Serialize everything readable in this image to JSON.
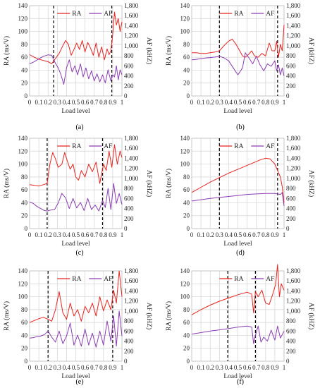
{
  "colors": {
    "ra": "#e8231e",
    "af": "#8b3db3",
    "grid": "#d3d3d3",
    "vline": "#000000"
  },
  "chart_data": [
    {
      "type": "line",
      "caption": "(a)",
      "xlabel": "Load level",
      "ylabel": "RA (ms/V)",
      "y2label": "AF (kHZ)",
      "xlim": [
        0,
        1
      ],
      "ylim": [
        0,
        140
      ],
      "y2lim": [
        0,
        1800
      ],
      "xticks": [
        "0",
        "0.1",
        "0.2",
        "0.3",
        "0.4",
        "0.5",
        "0.6",
        "0.7",
        "0.8",
        "0.9",
        "1"
      ],
      "yticks": [
        "0",
        "20",
        "40",
        "60",
        "80",
        "100",
        "120",
        "140"
      ],
      "y2ticks": [
        "0",
        "200",
        "400",
        "600",
        "800",
        "1,000",
        "1,200",
        "1,400",
        "1,600",
        "1,800"
      ],
      "vlines": [
        0.26,
        0.89
      ],
      "legend": [
        "RA",
        "AF"
      ],
      "series": [
        {
          "name": "RA",
          "axis": "left",
          "x": [
            0,
            0.05,
            0.1,
            0.15,
            0.2,
            0.24,
            0.28,
            0.32,
            0.36,
            0.39,
            0.42,
            0.45,
            0.48,
            0.51,
            0.54,
            0.57,
            0.6,
            0.63,
            0.66,
            0.69,
            0.72,
            0.75,
            0.78,
            0.81,
            0.84,
            0.86,
            0.88,
            0.9,
            0.92,
            0.94,
            0.96,
            0.98,
            1.0
          ],
          "y": [
            64,
            60,
            57,
            55,
            53,
            50,
            58,
            66,
            78,
            86,
            80,
            63,
            72,
            82,
            72,
            86,
            68,
            83,
            74,
            63,
            82,
            60,
            76,
            56,
            73,
            64,
            70,
            95,
            130,
            110,
            120,
            100,
            115
          ]
        },
        {
          "name": "AF",
          "axis": "right",
          "x": [
            0,
            0.05,
            0.1,
            0.15,
            0.2,
            0.24,
            0.28,
            0.31,
            0.34,
            0.37,
            0.4,
            0.43,
            0.46,
            0.49,
            0.52,
            0.55,
            0.58,
            0.61,
            0.64,
            0.67,
            0.7,
            0.73,
            0.76,
            0.79,
            0.82,
            0.85,
            0.88,
            0.9,
            0.92,
            0.94,
            0.96,
            0.98,
            1.0
          ],
          "y": [
            640,
            680,
            740,
            790,
            820,
            810,
            650,
            560,
            420,
            230,
            560,
            720,
            480,
            600,
            420,
            640,
            380,
            560,
            340,
            500,
            300,
            440,
            280,
            420,
            260,
            520,
            300,
            420,
            380,
            600,
            320,
            520,
            420
          ]
        }
      ]
    },
    {
      "type": "line",
      "caption": "(b)",
      "xlabel": "Load level",
      "ylabel": "RA (ms/V)",
      "y2label": "AF (kHZ)",
      "xlim": [
        0,
        1
      ],
      "ylim": [
        0,
        140
      ],
      "y2lim": [
        0,
        1800
      ],
      "xticks": [
        "0",
        "0.1",
        "0.2",
        "0.3",
        "0.4",
        "0.5",
        "0.6",
        "0.7",
        "0.8",
        "0.9",
        "1"
      ],
      "yticks": [
        "0",
        "20",
        "40",
        "60",
        "80",
        "100",
        "120",
        "140"
      ],
      "y2ticks": [
        "0",
        "200",
        "400",
        "600",
        "800",
        "1,000",
        "1,200",
        "1,400",
        "1,600",
        "1,800"
      ],
      "vlines": [
        0.3,
        0.93
      ],
      "legend": [
        "RA",
        "AF"
      ],
      "series": [
        {
          "name": "RA",
          "axis": "left",
          "x": [
            0,
            0.05,
            0.1,
            0.15,
            0.2,
            0.25,
            0.3,
            0.35,
            0.4,
            0.44,
            0.48,
            0.52,
            0.55,
            0.58,
            0.62,
            0.65,
            0.68,
            0.72,
            0.76,
            0.8,
            0.84,
            0.87,
            0.9,
            0.92,
            0.94,
            0.96,
            0.98,
            1.0
          ],
          "y": [
            67,
            67,
            66,
            66,
            67,
            68,
            70,
            78,
            85,
            88,
            80,
            70,
            62,
            60,
            65,
            70,
            62,
            60,
            66,
            62,
            82,
            70,
            70,
            85,
            60,
            80,
            70,
            110
          ]
        },
        {
          "name": "AF",
          "axis": "right",
          "x": [
            0,
            0.05,
            0.1,
            0.15,
            0.2,
            0.25,
            0.3,
            0.35,
            0.4,
            0.45,
            0.5,
            0.55,
            0.58,
            0.62,
            0.66,
            0.7,
            0.74,
            0.78,
            0.82,
            0.86,
            0.9,
            0.92,
            0.94,
            0.96,
            0.98,
            1.0
          ],
          "y": [
            720,
            730,
            745,
            755,
            765,
            775,
            790,
            760,
            700,
            560,
            420,
            560,
            860,
            760,
            640,
            790,
            620,
            500,
            640,
            590,
            700,
            500,
            620,
            420,
            560,
            400
          ]
        }
      ]
    },
    {
      "type": "line",
      "caption": "(c)",
      "xlabel": "Load level",
      "ylabel": "RA (ms/V)",
      "y2label": "AF (kHZ)",
      "xlim": [
        0,
        1
      ],
      "ylim": [
        0,
        140
      ],
      "y2lim": [
        0,
        1800
      ],
      "xticks": [
        "0",
        "0.1",
        "0.2",
        "0.3",
        "0.4",
        "0.5",
        "0.6",
        "0.7",
        "0.8",
        "0.9",
        "1"
      ],
      "yticks": [
        "0",
        "20",
        "40",
        "60",
        "80",
        "100",
        "120",
        "140"
      ],
      "y2ticks": [
        "0",
        "200",
        "400",
        "600",
        "800",
        "1,000",
        "1,200",
        "1,400",
        "1,600",
        "1,800"
      ],
      "vlines": [
        0.19,
        0.79
      ],
      "legend": [
        "RA",
        "AF"
      ],
      "series": [
        {
          "name": "RA",
          "axis": "left",
          "x": [
            0,
            0.05,
            0.1,
            0.15,
            0.19,
            0.22,
            0.25,
            0.28,
            0.31,
            0.35,
            0.38,
            0.41,
            0.44,
            0.47,
            0.5,
            0.53,
            0.56,
            0.6,
            0.64,
            0.68,
            0.72,
            0.76,
            0.8,
            0.83,
            0.86,
            0.89,
            0.92,
            0.95,
            0.98,
            1.0
          ],
          "y": [
            68,
            67,
            66,
            68,
            70,
            100,
            118,
            108,
            95,
            100,
            118,
            104,
            92,
            100,
            80,
            75,
            90,
            80,
            100,
            88,
            103,
            70,
            100,
            90,
            120,
            95,
            130,
            100,
            120,
            110
          ]
        },
        {
          "name": "AF",
          "axis": "right",
          "x": [
            0,
            0.04,
            0.08,
            0.12,
            0.16,
            0.19,
            0.23,
            0.27,
            0.31,
            0.35,
            0.39,
            0.43,
            0.47,
            0.51,
            0.55,
            0.59,
            0.63,
            0.67,
            0.71,
            0.75,
            0.79,
            0.82,
            0.85,
            0.88,
            0.91,
            0.94,
            0.97,
            1.0
          ],
          "y": [
            530,
            500,
            440,
            400,
            360,
            350,
            370,
            380,
            510,
            700,
            610,
            400,
            600,
            410,
            520,
            360,
            600,
            380,
            470,
            350,
            560,
            420,
            800,
            380,
            900,
            500,
            700,
            480
          ]
        }
      ]
    },
    {
      "type": "line",
      "caption": "(d)",
      "xlabel": "Load level",
      "ylabel": "RA (ms/V)",
      "y2label": "AF (kHZ)",
      "xlim": [
        0,
        1
      ],
      "ylim": [
        0,
        140
      ],
      "y2lim": [
        0,
        1800
      ],
      "xticks": [
        "0",
        "0.1",
        "0.2",
        "0.3",
        "0.4",
        "0.5",
        "0.6",
        "0.7",
        "0.8",
        "0.9",
        "1"
      ],
      "yticks": [
        "0",
        "20",
        "40",
        "60",
        "80",
        "100",
        "120",
        "140"
      ],
      "y2ticks": [
        "0",
        "200",
        "400",
        "600",
        "800",
        "1,000",
        "1,200",
        "1,400",
        "1,600",
        "1,800"
      ],
      "vlines": [
        0.3,
        0.93
      ],
      "legend": [
        "RA",
        "AF"
      ],
      "series": [
        {
          "name": "RA",
          "axis": "left",
          "x": [
            0,
            0.1,
            0.2,
            0.3,
            0.4,
            0.5,
            0.6,
            0.7,
            0.75,
            0.8,
            0.85,
            0.9,
            0.93,
            0.96,
            0.98,
            1.0
          ],
          "y": [
            56,
            64,
            72,
            79,
            86,
            92,
            98,
            104,
            107,
            109,
            108,
            100,
            90,
            80,
            65,
            40
          ]
        },
        {
          "name": "AF",
          "axis": "right",
          "x": [
            0,
            0.1,
            0.2,
            0.3,
            0.4,
            0.5,
            0.6,
            0.7,
            0.8,
            0.9,
            0.93,
            0.96,
            0.98,
            1.0
          ],
          "y": [
            550,
            575,
            600,
            620,
            640,
            660,
            680,
            690,
            700,
            700,
            690,
            680,
            720,
            450
          ]
        }
      ]
    },
    {
      "type": "line",
      "caption": "(e)",
      "xlabel": "Load level",
      "ylabel": "RA (ms/V)",
      "y2label": "AF (kHZ)",
      "xlim": [
        0,
        1
      ],
      "ylim": [
        0,
        140
      ],
      "y2lim": [
        0,
        1800
      ],
      "xticks": [
        "0",
        "0.1",
        "0.2",
        "0.3",
        "0.4",
        "0.5",
        "0.6",
        "0.7",
        "0.8",
        "0.9",
        "1"
      ],
      "yticks": [
        "0",
        "20",
        "40",
        "60",
        "80",
        "100",
        "120",
        "140"
      ],
      "y2ticks": [
        "0",
        "200",
        "400",
        "600",
        "800",
        "1,000",
        "1,200",
        "1,400",
        "1,600",
        "1,800"
      ],
      "vlines": [
        0.2,
        0.9
      ],
      "legend": [
        "RA",
        "AF"
      ],
      "series": [
        {
          "name": "RA",
          "axis": "left",
          "x": [
            0,
            0.05,
            0.1,
            0.15,
            0.2,
            0.24,
            0.28,
            0.32,
            0.36,
            0.4,
            0.44,
            0.48,
            0.52,
            0.56,
            0.6,
            0.64,
            0.68,
            0.72,
            0.76,
            0.8,
            0.84,
            0.88,
            0.91,
            0.94,
            0.97,
            1.0
          ],
          "y": [
            60,
            63,
            66,
            68,
            65,
            62,
            80,
            108,
            75,
            65,
            90,
            70,
            80,
            62,
            85,
            75,
            90,
            70,
            100,
            78,
            95,
            80,
            110,
            90,
            140,
            100
          ]
        },
        {
          "name": "AF",
          "axis": "right",
          "x": [
            0,
            0.04,
            0.08,
            0.12,
            0.16,
            0.2,
            0.24,
            0.28,
            0.32,
            0.36,
            0.4,
            0.44,
            0.48,
            0.52,
            0.56,
            0.6,
            0.64,
            0.68,
            0.72,
            0.76,
            0.8,
            0.84,
            0.88,
            0.91,
            0.94,
            0.97,
            1.0
          ],
          "y": [
            460,
            470,
            490,
            500,
            530,
            600,
            480,
            380,
            600,
            350,
            500,
            760,
            320,
            520,
            300,
            640,
            320,
            560,
            280,
            600,
            320,
            800,
            400,
            900,
            300,
            1000,
            500
          ]
        }
      ]
    },
    {
      "type": "line",
      "caption": "(f)",
      "xlabel": "Load level",
      "ylabel": "RA (ms/V)",
      "y2label": "AF (kHZ)",
      "xlim": [
        0,
        1
      ],
      "ylim": [
        0,
        140
      ],
      "y2lim": [
        0,
        1800
      ],
      "xticks": [
        "0",
        "0.1",
        "0.2",
        "0.3",
        "0.4",
        "0.5",
        "0.6",
        "0.7",
        "0.8",
        "0.9",
        "1"
      ],
      "yticks": [
        "0",
        "20",
        "40",
        "60",
        "80",
        "100",
        "120",
        "140"
      ],
      "y2ticks": [
        "0",
        "200",
        "400",
        "600",
        "800",
        "1,000",
        "1,200",
        "1,400",
        "1,600",
        "1,800"
      ],
      "vlines": [
        0.39,
        0.69
      ],
      "legend": [
        "RA",
        "AF"
      ],
      "series": [
        {
          "name": "RA",
          "axis": "left",
          "x": [
            0,
            0.1,
            0.2,
            0.3,
            0.4,
            0.5,
            0.6,
            0.65,
            0.67,
            0.69,
            0.72,
            0.76,
            0.8,
            0.84,
            0.88,
            0.91,
            0.93,
            0.95,
            0.97,
            1.0
          ],
          "y": [
            72,
            80,
            87,
            93,
            98,
            103,
            107,
            104,
            75,
            108,
            100,
            110,
            90,
            88,
            105,
            120,
            150,
            100,
            120,
            110
          ]
        },
        {
          "name": "AF",
          "axis": "right",
          "x": [
            0,
            0.1,
            0.2,
            0.3,
            0.4,
            0.5,
            0.6,
            0.65,
            0.67,
            0.69,
            0.72,
            0.75,
            0.78,
            0.82,
            0.86,
            0.9,
            0.93,
            0.96,
            1.0
          ],
          "y": [
            540,
            570,
            600,
            625,
            650,
            680,
            700,
            680,
            350,
            520,
            700,
            380,
            480,
            400,
            620,
            420,
            700,
            460,
            600
          ]
        }
      ]
    }
  ]
}
